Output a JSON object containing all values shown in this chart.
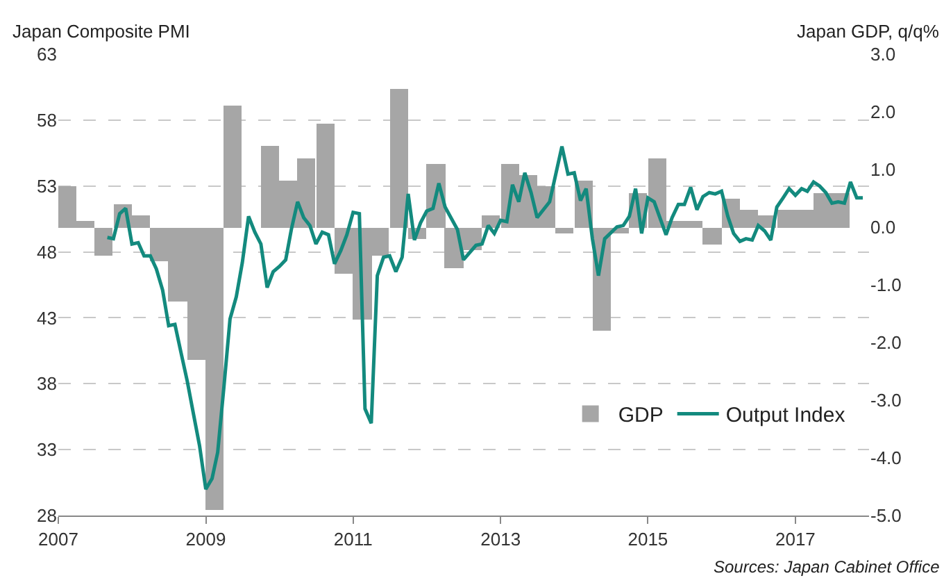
{
  "chart_data": {
    "type": "bar",
    "title": "Japan Composite PMI",
    "y2label": "Japan GDP, q/q%",
    "xlim": [
      "2007-01-01",
      "2018-01-01"
    ],
    "xticks": [
      "2007",
      "2009",
      "2011",
      "2013",
      "2015",
      "2017"
    ],
    "ylim": [
      28,
      63
    ],
    "yticks": [
      28,
      33,
      38,
      43,
      48,
      53,
      58,
      63
    ],
    "y2lim": [
      -5,
      3
    ],
    "y2ticks": [
      {
        "value": -5,
        "label": "-5.0"
      },
      {
        "value": -4,
        "label": "-4.0"
      },
      {
        "value": -3,
        "label": "-3.0"
      },
      {
        "value": -2,
        "label": "-2.0"
      },
      {
        "value": -1,
        "label": "-1.0"
      },
      {
        "value": 0,
        "label": "0.0"
      },
      {
        "value": 1,
        "label": "1.0"
      },
      {
        "value": 2,
        "label": "2.0"
      },
      {
        "value": 3,
        "label": "3.0"
      }
    ],
    "grid": "y",
    "legend": "bottom right",
    "marker": "none",
    "line_style": "solid",
    "annotations": [
      "Sources: Japan Cabinet Office"
    ],
    "series": [
      {
        "name": "GDP",
        "axis": "y2",
        "color": "#a6a6a6",
        "x": [
          "2007-02-15",
          "2007-05-15",
          "2007-08-15",
          "2007-11-15",
          "2008-02-15",
          "2008-05-15",
          "2008-08-15",
          "2008-11-15",
          "2009-02-15",
          "2009-05-15",
          "2009-08-15",
          "2009-11-15",
          "2010-02-15",
          "2010-05-15",
          "2010-08-15",
          "2010-11-15",
          "2011-02-15",
          "2011-05-15",
          "2011-08-15",
          "2011-11-15",
          "2012-02-15",
          "2012-05-15",
          "2012-08-15",
          "2012-11-15",
          "2013-02-15",
          "2013-05-15",
          "2013-08-15",
          "2013-11-15",
          "2014-02-15",
          "2014-05-15",
          "2014-08-15",
          "2014-11-15",
          "2015-02-15",
          "2015-05-15",
          "2015-08-15",
          "2015-11-15",
          "2016-02-15",
          "2016-05-15",
          "2016-08-15",
          "2016-11-15",
          "2017-02-15",
          "2017-05-15",
          "2017-08-15"
        ],
        "values": [
          0.7,
          0.1,
          -0.5,
          0.4,
          0.2,
          -0.6,
          -1.3,
          -2.3,
          -4.9,
          2.1,
          0,
          1.4,
          0.8,
          1.2,
          1.8,
          -0.8,
          -1.6,
          -0.5,
          2.4,
          -0.2,
          1.1,
          -0.7,
          -0.4,
          0.2,
          1.1,
          0.9,
          0.7,
          -0.1,
          0.8,
          -1.8,
          -0.1,
          0.6,
          1.2,
          0.1,
          0.1,
          -0.3,
          0.5,
          0.3,
          0.2,
          0.3,
          0.3,
          0.6,
          0.6
        ]
      },
      {
        "name": "Output Index",
        "type": "line",
        "color": "#138a7e",
        "x": [
          "2007-09",
          "2007-10",
          "2007-11",
          "2007-12",
          "2008-01",
          "2008-02",
          "2008-03",
          "2008-04",
          "2008-05",
          "2008-06",
          "2008-07",
          "2008-08",
          "2008-09",
          "2008-10",
          "2008-11",
          "2008-12",
          "2009-01",
          "2009-02",
          "2009-03",
          "2009-04",
          "2009-05",
          "2009-06",
          "2009-07",
          "2009-08",
          "2009-09",
          "2009-10",
          "2009-11",
          "2009-12",
          "2010-01",
          "2010-02",
          "2010-03",
          "2010-04",
          "2010-05",
          "2010-06",
          "2010-07",
          "2010-08",
          "2010-09",
          "2010-10",
          "2010-11",
          "2010-12",
          "2011-01",
          "2011-02",
          "2011-03",
          "2011-04",
          "2011-05",
          "2011-06",
          "2011-07",
          "2011-08",
          "2011-09",
          "2011-10",
          "2011-11",
          "2011-12",
          "2012-01",
          "2012-02",
          "2012-03",
          "2012-04",
          "2012-06",
          "2012-07",
          "2012-09",
          "2012-10",
          "2012-11",
          "2012-12",
          "2013-01",
          "2013-02",
          "2013-03",
          "2013-04",
          "2013-05",
          "2013-06",
          "2013-07",
          "2013-09",
          "2013-11",
          "2013-12",
          "2014-01",
          "2014-02",
          "2014-03",
          "2014-04",
          "2014-05",
          "2014-06",
          "2014-08",
          "2014-09",
          "2014-10",
          "2014-11",
          "2014-12",
          "2015-01",
          "2015-02",
          "2015-04",
          "2015-05",
          "2015-06",
          "2015-07",
          "2015-08",
          "2015-09",
          "2015-10",
          "2015-11",
          "2015-12",
          "2016-01",
          "2016-02",
          "2016-03",
          "2016-04",
          "2016-05",
          "2016-06",
          "2016-07",
          "2016-08",
          "2016-09",
          "2016-10",
          "2016-11",
          "2016-12",
          "2017-01",
          "2017-02",
          "2017-03",
          "2017-04",
          "2017-05",
          "2017-06",
          "2017-07",
          "2017-08",
          "2017-09",
          "2017-10",
          "2017-11",
          "2017-12"
        ],
        "values": [
          49.1,
          49.0,
          50.9,
          51.3,
          48.6,
          48.7,
          47.7,
          47.7,
          46.7,
          45.1,
          42.4,
          42.5,
          40.3,
          38.2,
          35.7,
          33.3,
          30.0,
          30.8,
          32.8,
          37.8,
          42.9,
          44.6,
          47.2,
          50.7,
          49.5,
          48.6,
          45.3,
          46.5,
          46.9,
          47.4,
          49.7,
          51.8,
          50.6,
          50.0,
          48.6,
          49.5,
          49.3,
          47.1,
          48.1,
          49.3,
          51.0,
          50.9,
          36.1,
          35.0,
          46.2,
          47.6,
          47.7,
          46.5,
          47.6,
          52.4,
          48.9,
          50.2,
          51.1,
          51.3,
          53.2,
          51.4,
          49.7,
          47.4,
          48.5,
          48.6,
          50.0,
          49.4,
          50.4,
          50.3,
          53.1,
          51.8,
          54.0,
          52.5,
          50.6,
          51.8,
          56.0,
          53.9,
          54.0,
          51.9,
          52.8,
          49.0,
          46.2,
          49.0,
          49.9,
          50.0,
          50.7,
          52.8,
          49.4,
          52.1,
          51.8,
          49.3,
          50.6,
          51.6,
          51.6,
          52.9,
          51.2,
          52.2,
          52.5,
          52.4,
          52.6,
          50.7,
          49.4,
          48.8,
          49.0,
          48.9,
          50.0,
          49.6,
          48.9,
          51.4,
          52.1,
          52.8,
          52.3,
          52.8,
          52.6,
          53.3,
          53.0,
          52.5,
          51.7,
          51.8,
          51.7,
          53.3,
          52.1,
          52.1
        ]
      }
    ]
  }
}
